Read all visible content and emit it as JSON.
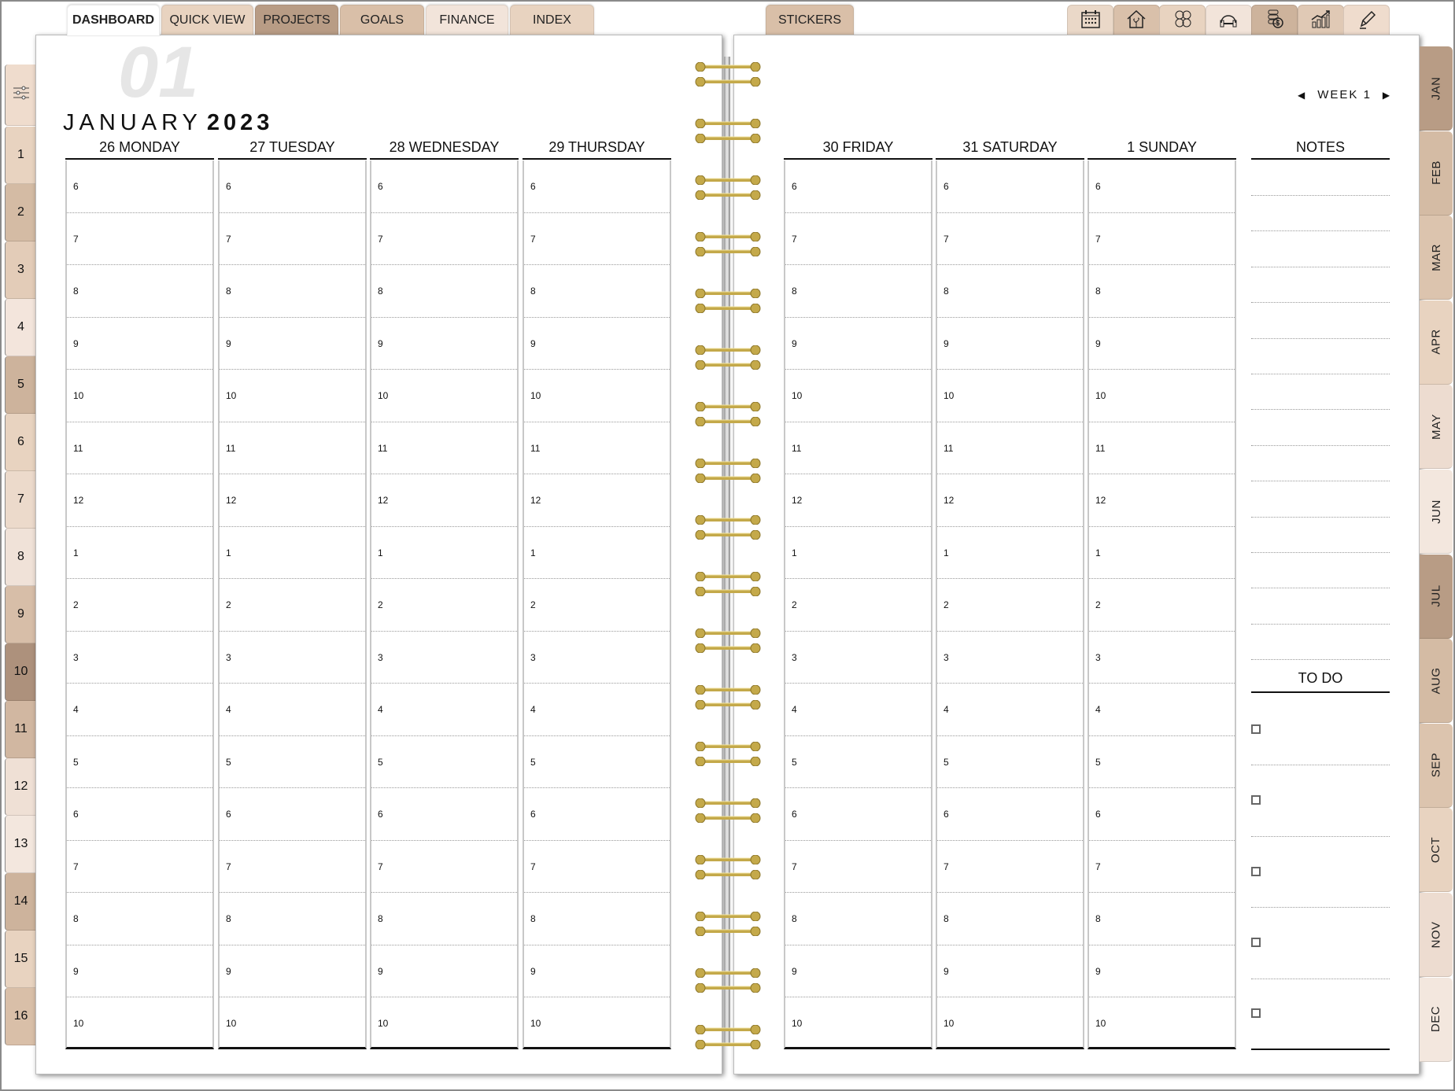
{
  "top_tabs": [
    {
      "label": "DASHBOARD",
      "color": "#ffffff",
      "active": true
    },
    {
      "label": "QUICK VIEW",
      "color": "#e8d3c0"
    },
    {
      "label": "PROJECTS",
      "color": "#b89c85"
    },
    {
      "label": "GOALS",
      "color": "#d9bfa8"
    },
    {
      "label": "FINANCE",
      "color": "#f2e4da"
    },
    {
      "label": "INDEX",
      "color": "#e8d3c0"
    }
  ],
  "stickers_tab": {
    "label": "STICKERS",
    "color": "#d9bfa8"
  },
  "icon_tabs": [
    {
      "icon": "calendar-icon",
      "color": "#ead8c8"
    },
    {
      "icon": "home-plant-icon",
      "color": "#d9c0aa"
    },
    {
      "icon": "media-icon",
      "color": "#e8d3c0"
    },
    {
      "icon": "fitness-dumbbell-icon",
      "color": "#f2e4da"
    },
    {
      "icon": "coins-icon",
      "color": "#cdb39c"
    },
    {
      "icon": "growth-chart-icon",
      "color": "#e0c9b5"
    },
    {
      "icon": "pencil-icon",
      "color": "#efdccd"
    }
  ],
  "left_tabs": {
    "settings": {
      "icon": "sliders-icon",
      "color": "#efdccd"
    },
    "items": [
      {
        "label": "1",
        "color": "#e8d3c0"
      },
      {
        "label": "2",
        "color": "#d4bba4"
      },
      {
        "label": "3",
        "color": "#e3ccb8"
      },
      {
        "label": "4",
        "color": "#f3e5dc"
      },
      {
        "label": "5",
        "color": "#cdb39c"
      },
      {
        "label": "6",
        "color": "#e8d3c0"
      },
      {
        "label": "7",
        "color": "#ecdacb"
      },
      {
        "label": "8",
        "color": "#f0e2d8"
      },
      {
        "label": "9",
        "color": "#d7bea8"
      },
      {
        "label": "10",
        "color": "#ad917c"
      },
      {
        "label": "11",
        "color": "#d1b7a1"
      },
      {
        "label": "12",
        "color": "#efe0d5"
      },
      {
        "label": "13",
        "color": "#f3e7de"
      },
      {
        "label": "14",
        "color": "#cdb39c"
      },
      {
        "label": "15",
        "color": "#e8d3c0"
      },
      {
        "label": "16",
        "color": "#d9bfa8"
      }
    ]
  },
  "month_tabs": [
    {
      "label": "JAN",
      "color": "#b89c85"
    },
    {
      "label": "FEB",
      "color": "#d4bba4"
    },
    {
      "label": "MAR",
      "color": "#dcc4ae"
    },
    {
      "label": "APR",
      "color": "#e8d3c0"
    },
    {
      "label": "MAY",
      "color": "#eddcd0"
    },
    {
      "label": "JUN",
      "color": "#f3e7de"
    },
    {
      "label": "JUL",
      "color": "#b89c85"
    },
    {
      "label": "AUG",
      "color": "#d4bba4"
    },
    {
      "label": "SEP",
      "color": "#dcc4ae"
    },
    {
      "label": "OCT",
      "color": "#e8d3c0"
    },
    {
      "label": "NOV",
      "color": "#eddcd0"
    },
    {
      "label": "DEC",
      "color": "#f3e7de"
    }
  ],
  "header": {
    "month": "JANUARY",
    "year": "2023",
    "watermark": "01"
  },
  "week_nav": {
    "label": "WEEK 1"
  },
  "days_left": [
    "26 MONDAY",
    "27 TUESDAY",
    "28 WEDNESDAY",
    "29 THURSDAY"
  ],
  "days_right": [
    "30 FRIDAY",
    "31 SATURDAY",
    "1 SUNDAY"
  ],
  "hours": [
    "6",
    "7",
    "8",
    "9",
    "10",
    "11",
    "12",
    "1",
    "2",
    "3",
    "4",
    "5",
    "6",
    "7",
    "8",
    "9",
    "10"
  ],
  "notes": {
    "title": "NOTES"
  },
  "todo": {
    "title": "TO DO",
    "count": 5
  },
  "ring_color": "#c4a94a"
}
